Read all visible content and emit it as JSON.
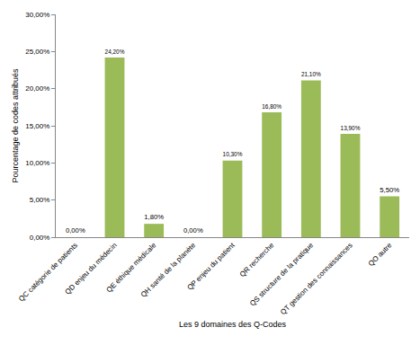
{
  "chart_data": {
    "type": "bar",
    "x_label": "Les 9 domaines des Q-Codes",
    "y_label": "Pourcentage de codes attribués",
    "categories": [
      "QC catégorie de patients",
      "QD enjeu du médecin",
      "QE éthique médicale",
      "QH santé de la planète",
      "QP enjeu du patient",
      "QR recherche",
      "QS structure de la pratique",
      "QT gestion des connaissances",
      "QO autre"
    ],
    "values": [
      0,
      24.2,
      1.8,
      0,
      10.3,
      16.8,
      21.1,
      13.9,
      5.5
    ],
    "value_labels": [
      "0,00%",
      "24,20%",
      "1,80%",
      "0,00%",
      "10,30%",
      "16,80%",
      "21,10%",
      "13,90%",
      "5,50%"
    ],
    "data_labels": true,
    "color": "#9bbb59",
    "ylim": [
      0,
      30
    ],
    "yticks": [
      {
        "value": 0,
        "label": "0,00%"
      },
      {
        "value": 5,
        "label": "5,00%"
      },
      {
        "value": 10,
        "label": "10,00%"
      },
      {
        "value": 15,
        "label": "15,00%"
      },
      {
        "value": 20,
        "label": "20,00%"
      },
      {
        "value": 25,
        "label": "25,00%"
      },
      {
        "value": 30,
        "label": "30,00%"
      }
    ],
    "grid": false
  }
}
